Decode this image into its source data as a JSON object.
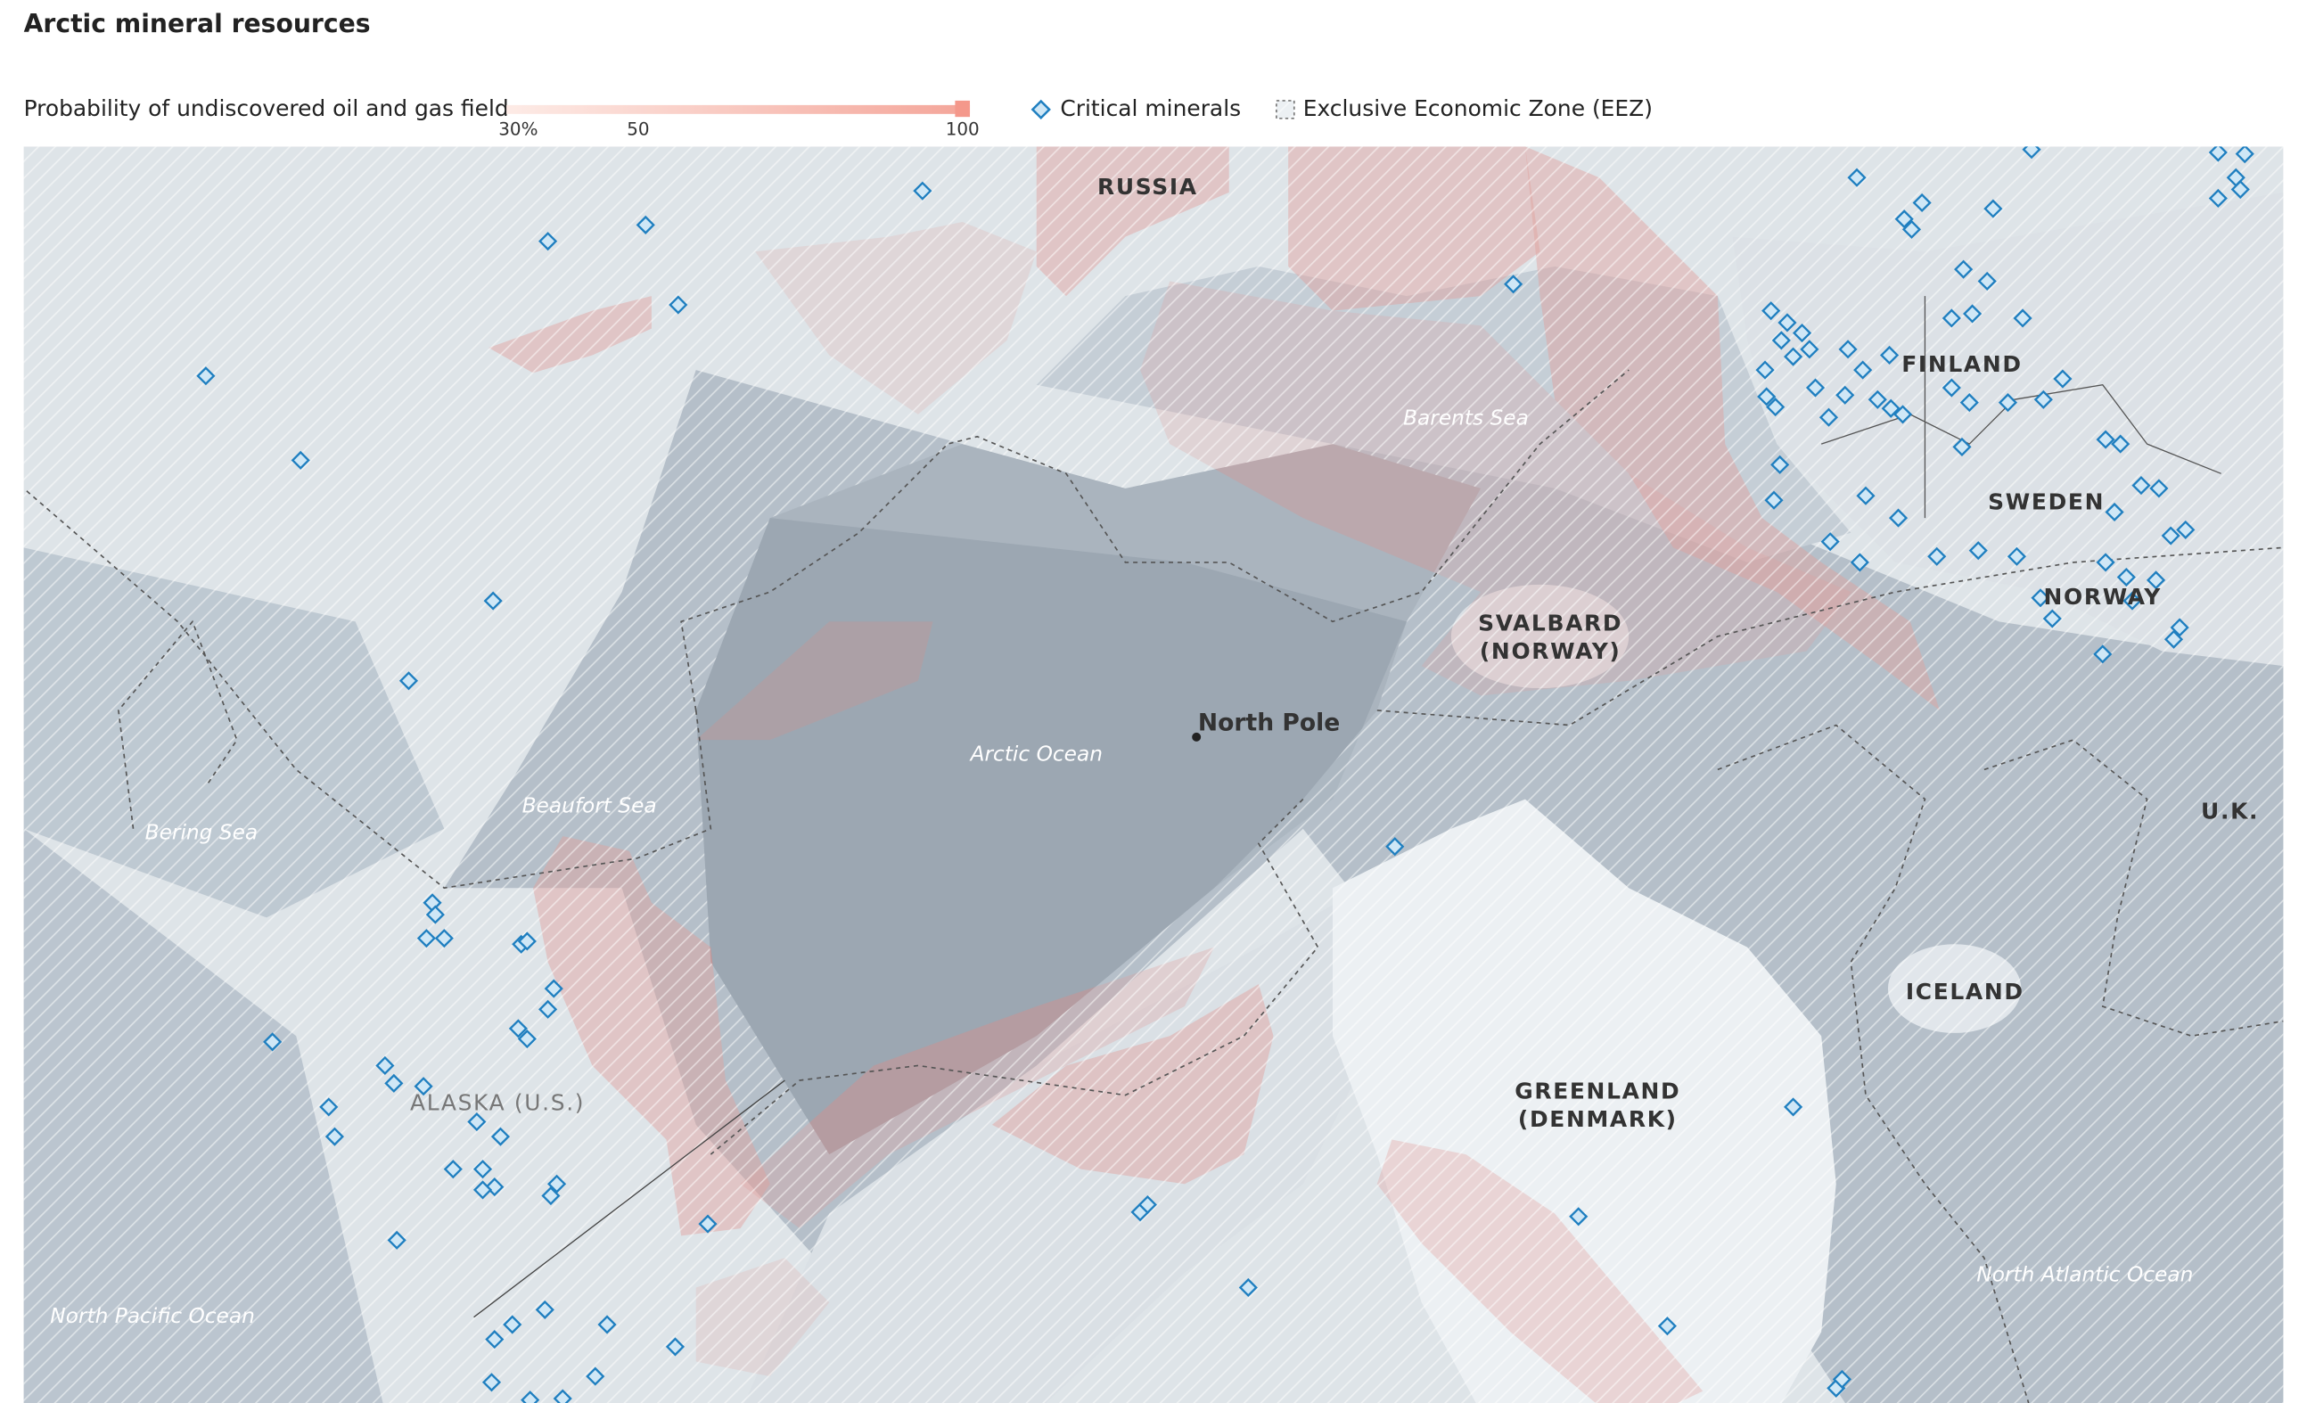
{
  "header": {
    "title": "Arctic mineral resources"
  },
  "legend": {
    "probability_label": "Probability of undiscovered oil and gas field",
    "ticks": [
      "30%",
      "50",
      "100"
    ],
    "minerals": "Critical minerals",
    "eez": "Exclusive Economic Zone (EEZ)"
  },
  "map": {
    "labels": [
      "RUSSIA",
      "Barents Sea",
      "FINLAND",
      "SWEDEN",
      "NORWAY",
      "SVALBARD",
      "(NORWAY)",
      "North Pole",
      "Arctic Ocean",
      "Beaufort Sea",
      "Bering Sea",
      "U.K.",
      "ICELAND",
      "GREENLAND",
      "(DENMARK)",
      "ALASKA (U.S.)",
      "North Pacific Ocean",
      "North Atlantic Ocean"
    ]
  }
}
